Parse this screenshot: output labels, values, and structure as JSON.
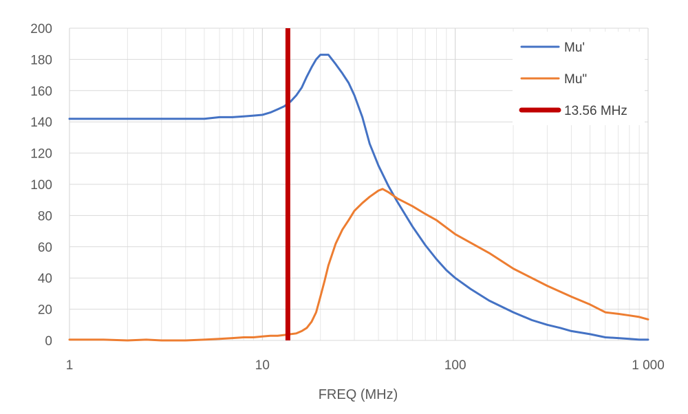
{
  "chart_data": {
    "type": "line",
    "title": "",
    "xlabel": "FREQ (MHz)",
    "ylabel": "",
    "x_scale": "log",
    "xlim": [
      1,
      1000
    ],
    "ylim": [
      0,
      200
    ],
    "grid": true,
    "legend_position": "top-right",
    "x_tick_values": [
      1,
      10,
      100,
      1000
    ],
    "x_tick_labels": [
      "1",
      "10",
      "100",
      "1 000"
    ],
    "y_tick_values": [
      0,
      20,
      40,
      60,
      80,
      100,
      120,
      140,
      160,
      180,
      200
    ],
    "y_tick_labels": [
      "0",
      "20",
      "40",
      "60",
      "80",
      "100",
      "120",
      "140",
      "160",
      "180",
      "200"
    ],
    "series": [
      {
        "name": "Mu'",
        "color": "#4472C4",
        "x": [
          1,
          2,
          3,
          5,
          6,
          7,
          8,
          9,
          10,
          11,
          12,
          13,
          14,
          15,
          16,
          17,
          18,
          19,
          20,
          22,
          24,
          26,
          28,
          30,
          33,
          36,
          40,
          45,
          50,
          60,
          70,
          80,
          90,
          100,
          120,
          150,
          200,
          250,
          300,
          350,
          400,
          500,
          600,
          700,
          800,
          900,
          1000
        ],
        "y": [
          142,
          142,
          142,
          142,
          143,
          143,
          143.5,
          144,
          144.5,
          146,
          148,
          150,
          153,
          157,
          162,
          169,
          175,
          180,
          183,
          183,
          177,
          171,
          165,
          157,
          143,
          126,
          112,
          99,
          89,
          73,
          61,
          52,
          45,
          40,
          33,
          25.5,
          18,
          13,
          10,
          8,
          6,
          4,
          2,
          1.5,
          1,
          0.5,
          0.5
        ]
      },
      {
        "name": "Mu\"",
        "color": "#ED7D31",
        "x": [
          1,
          1.5,
          2,
          2.5,
          3,
          4,
          5,
          6,
          7,
          8,
          9,
          10,
          11,
          12,
          13,
          14,
          15,
          16,
          17,
          18,
          19,
          20,
          21,
          22,
          24,
          26,
          28,
          30,
          33,
          36,
          40,
          42,
          45,
          50,
          60,
          70,
          80,
          100,
          150,
          200,
          300,
          400,
          500,
          600,
          700,
          800,
          900,
          1000
        ],
        "y": [
          0.5,
          0.5,
          0,
          0.5,
          0,
          0,
          0.5,
          1,
          1.5,
          2,
          2,
          2.5,
          3,
          3,
          3.5,
          4,
          4.5,
          6,
          8,
          12,
          18,
          28,
          38,
          48,
          62,
          71,
          77,
          83,
          88,
          92,
          96,
          97,
          95,
          91,
          86,
          81,
          77,
          68,
          56,
          46,
          35,
          28,
          23,
          18,
          17,
          16,
          15,
          13.5
        ]
      }
    ],
    "markers": [
      {
        "name": "13.56 MHz",
        "x": 13.56,
        "color": "#C00000",
        "type": "vertical-line"
      }
    ]
  }
}
